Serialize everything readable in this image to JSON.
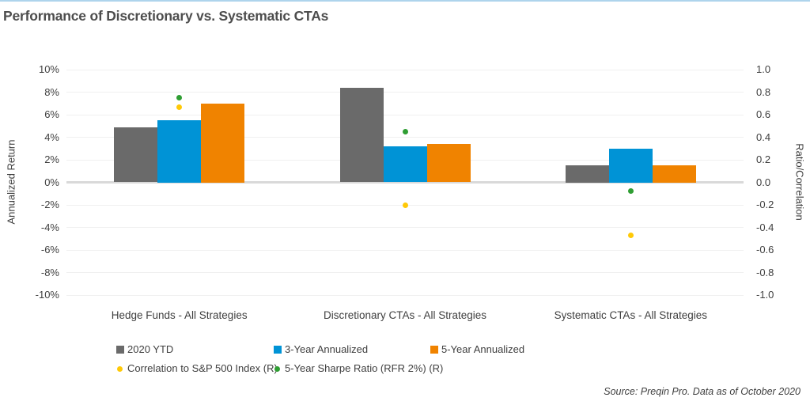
{
  "frame": {
    "source_note": "Source: Preqin Pro. Data as of October 2020",
    "accent_border_color": "#aed4ec"
  },
  "chart_data": {
    "type": "bar",
    "title": "Performance of Discretionary vs. Systematic CTAs",
    "categories": [
      "Hedge Funds - All Strategies",
      "Discretionary CTAs - All Strategies",
      "Systematic CTAs - All Strategies"
    ],
    "series": [
      {
        "name": "2020 YTD",
        "kind": "bar",
        "color": "#6a6a6a",
        "axis": "left",
        "values": [
          4.9,
          8.4,
          1.5
        ]
      },
      {
        "name": "3-Year Annualized",
        "kind": "bar",
        "color": "#0093d6",
        "axis": "left",
        "values": [
          5.5,
          3.2,
          3.0
        ]
      },
      {
        "name": "5-Year Annualized",
        "kind": "bar",
        "color": "#f08300",
        "axis": "left",
        "values": [
          7.0,
          3.4,
          1.5
        ]
      },
      {
        "name": "Correlation to S&P 500 Index (R)",
        "kind": "dot",
        "color": "#ffc907",
        "axis": "right",
        "values": [
          0.67,
          -0.2,
          -0.47
        ]
      },
      {
        "name": "5-Year Sharpe Ratio (RFR 2%) (R)",
        "kind": "dot",
        "color": "#2f9e33",
        "axis": "right",
        "values": [
          0.75,
          0.45,
          -0.08
        ]
      }
    ],
    "left_axis": {
      "label": "Annualized Return",
      "min": -10,
      "max": 10,
      "step": 2,
      "ticks": [
        "10%",
        "8%",
        "6%",
        "4%",
        "2%",
        "0%",
        "-2%",
        "-4%",
        "-6%",
        "-8%",
        "-10%"
      ]
    },
    "right_axis": {
      "label": "Ratio/Correlation",
      "min": -1.0,
      "max": 1.0,
      "step": 0.2,
      "ticks": [
        "1.0",
        "0.8",
        "0.6",
        "0.4",
        "0.2",
        "0.0",
        "-0.2",
        "-0.4",
        "-0.6",
        "-0.8",
        "-1.0"
      ]
    },
    "grid": true,
    "legend_position": "bottom"
  }
}
